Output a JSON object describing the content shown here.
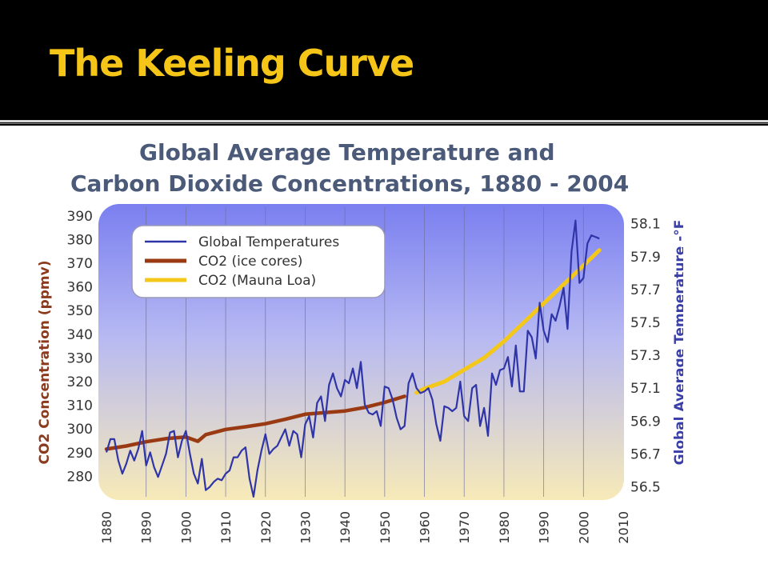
{
  "slide": {
    "title": "The Keeling Curve"
  },
  "colors": {
    "slide_bg": "#000000",
    "title_text": "#f5c518",
    "chart_title": "#4a5a78",
    "plot_top": "#7a7ff0",
    "plot_bottom": "#f7eab8",
    "temperature_line": "#2f35a8",
    "co2_ice_cores": "#9a3a12",
    "co2_mauna_loa": "#f3c81a",
    "left_axis_label": "#8b3a1e",
    "right_axis_label": "#3a3fa8"
  },
  "chart_data": {
    "type": "line",
    "title_line1": "Global Average Temperature and",
    "title_line2": "Carbon Dioxide Concentrations, 1880 - 2004",
    "ylabel": "CO2 Concentration (ppmv)",
    "y2label": "Global Average Temperature -°F",
    "xlim": [
      1880,
      2010
    ],
    "ylim": [
      270,
      395
    ],
    "y2lim": [
      56.42,
      58.22
    ],
    "x_ticks": [
      "1880",
      "1890",
      "1900",
      "1910",
      "1920",
      "1930",
      "1940",
      "1950",
      "1960",
      "1970",
      "1980",
      "1990",
      "2000",
      "2010"
    ],
    "y_ticks": [
      "390",
      "380",
      "370",
      "360",
      "350",
      "340",
      "330",
      "320",
      "310",
      "300",
      "290",
      "280"
    ],
    "y2_ticks": [
      "58.1",
      "57.9",
      "57.7",
      "57.5",
      "57.3",
      "57.1",
      "56.9",
      "56.7",
      "56.5"
    ],
    "legend_position": "top-left",
    "grid": "vertical lines at decades",
    "series": [
      {
        "name": "Global Temperatures",
        "axis": "right",
        "x": [
          1880,
          1881,
          1882,
          1883,
          1884,
          1885,
          1886,
          1887,
          1888,
          1889,
          1890,
          1891,
          1892,
          1893,
          1894,
          1895,
          1896,
          1897,
          1898,
          1899,
          1900,
          1901,
          1902,
          1903,
          1904,
          1905,
          1906,
          1907,
          1908,
          1909,
          1910,
          1911,
          1912,
          1913,
          1914,
          1915,
          1916,
          1917,
          1918,
          1919,
          1920,
          1921,
          1922,
          1923,
          1924,
          1925,
          1926,
          1927,
          1928,
          1929,
          1930,
          1931,
          1932,
          1933,
          1934,
          1935,
          1936,
          1937,
          1938,
          1939,
          1940,
          1941,
          1942,
          1943,
          1944,
          1945,
          1946,
          1947,
          1948,
          1949,
          1950,
          1951,
          1952,
          1953,
          1954,
          1955,
          1956,
          1957,
          1958,
          1959,
          1960,
          1961,
          1962,
          1963,
          1964,
          1965,
          1966,
          1967,
          1968,
          1969,
          1970,
          1971,
          1972,
          1973,
          1974,
          1975,
          1976,
          1977,
          1978,
          1979,
          1980,
          1981,
          1982,
          1983,
          1984,
          1985,
          1986,
          1987,
          1988,
          1989,
          1990,
          1991,
          1992,
          1993,
          1994,
          1995,
          1996,
          1997,
          1998,
          1999,
          2000,
          2001,
          2002,
          2003,
          2004
        ],
        "values": [
          56.71,
          56.79,
          56.79,
          56.66,
          56.58,
          56.64,
          56.72,
          56.66,
          56.73,
          56.84,
          56.63,
          56.71,
          56.62,
          56.56,
          56.63,
          56.7,
          56.83,
          56.84,
          56.68,
          56.78,
          56.84,
          56.7,
          56.58,
          56.52,
          56.67,
          56.48,
          56.5,
          56.53,
          56.55,
          56.54,
          56.58,
          56.6,
          56.68,
          56.68,
          56.72,
          56.74,
          56.55,
          56.44,
          56.6,
          56.72,
          56.82,
          56.7,
          56.73,
          56.75,
          56.8,
          56.85,
          56.75,
          56.84,
          56.82,
          56.68,
          56.88,
          56.93,
          56.8,
          57.01,
          57.05,
          56.9,
          57.12,
          57.19,
          57.1,
          57.05,
          57.15,
          57.13,
          57.22,
          57.1,
          57.26,
          57.0,
          56.95,
          56.94,
          56.96,
          56.87,
          57.11,
          57.1,
          57.03,
          56.92,
          56.85,
          56.87,
          57.13,
          57.19,
          57.1,
          57.07,
          57.08,
          57.1,
          57.03,
          56.88,
          56.78,
          56.99,
          56.98,
          56.96,
          56.98,
          57.14,
          56.93,
          56.9,
          57.1,
          57.12,
          56.87,
          56.98,
          56.81,
          57.19,
          57.12,
          57.21,
          57.22,
          57.29,
          57.11,
          57.36,
          57.08,
          57.08,
          57.45,
          57.41,
          57.28,
          57.62,
          57.45,
          57.38,
          57.55,
          57.51,
          57.6,
          57.71,
          57.46,
          57.93,
          58.12,
          57.74,
          57.77,
          57.98,
          58.03,
          58.02,
          58.01
        ]
      },
      {
        "name": "CO2 (ice cores)",
        "axis": "left",
        "x": [
          1880,
          1885,
          1890,
          1895,
          1900,
          1903,
          1905,
          1910,
          1915,
          1920,
          1925,
          1930,
          1935,
          1940,
          1945,
          1950,
          1955
        ],
        "values": [
          291.5,
          292.8,
          294.6,
          295.9,
          296.6,
          294.8,
          297.6,
          299.8,
          300.9,
          302.2,
          304.1,
          306.2,
          306.9,
          307.6,
          309.1,
          311.2,
          313.8
        ]
      },
      {
        "name": "CO2 (Mauna Loa)",
        "axis": "left",
        "x": [
          1958,
          1960,
          1965,
          1970,
          1975,
          1980,
          1985,
          1990,
          1995,
          2000,
          2004
        ],
        "values": [
          315.3,
          317.0,
          320.0,
          325.0,
          330.0,
          337.0,
          345.0,
          353.0,
          361.0,
          369.0,
          375.5
        ]
      }
    ]
  }
}
